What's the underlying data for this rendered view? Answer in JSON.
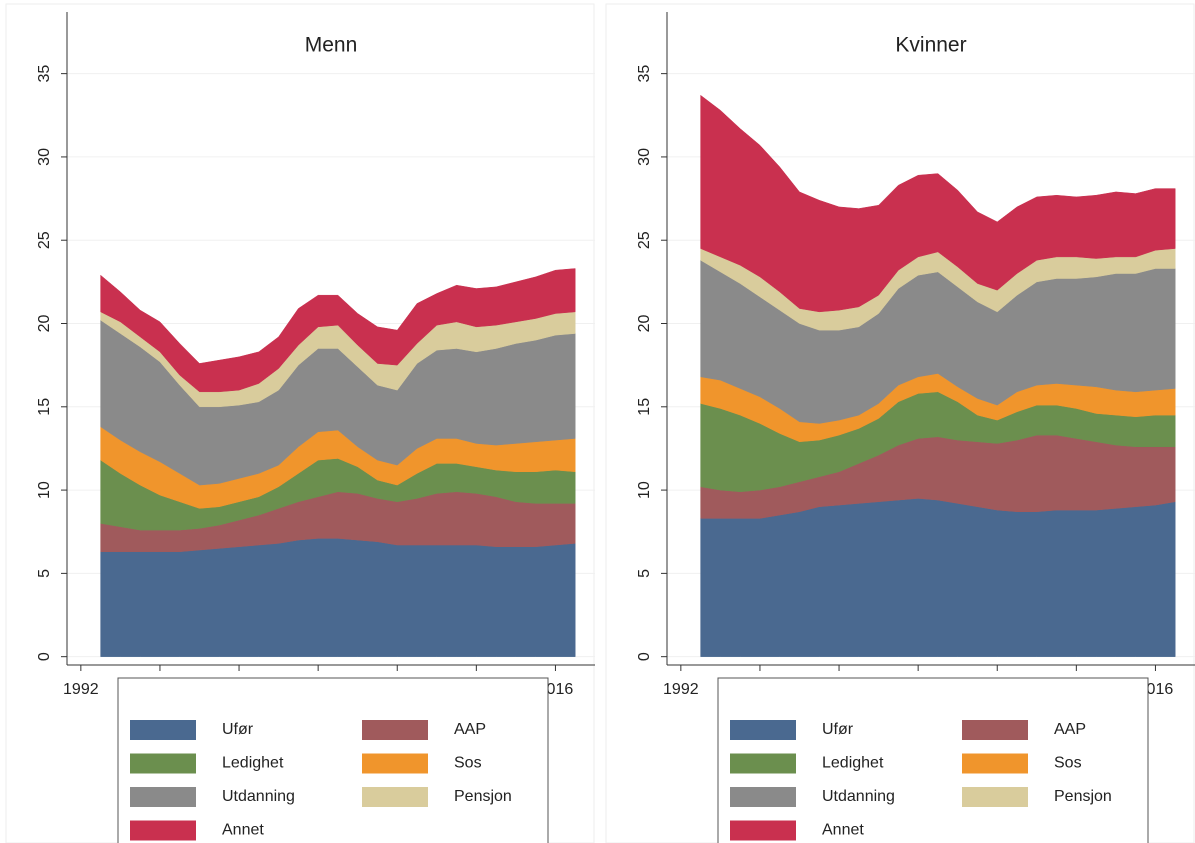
{
  "chart_data": [
    {
      "type": "area",
      "title": "Menn",
      "x": [
        1993,
        1994,
        1995,
        1996,
        1997,
        1998,
        1999,
        2000,
        2001,
        2002,
        2003,
        2004,
        2005,
        2006,
        2007,
        2008,
        2009,
        2010,
        2011,
        2012,
        2013,
        2014,
        2015,
        2016,
        2017
      ],
      "xlim": [
        1991.3,
        2018
      ],
      "xticks": [
        1992,
        1996,
        2000,
        2004,
        2008,
        2012,
        2016
      ],
      "ylim": [
        -0.5,
        38.7
      ],
      "yticks": [
        0,
        5,
        10,
        15,
        20,
        25,
        30,
        35
      ],
      "grid": true,
      "legend": "bottom",
      "series": [
        {
          "name": "Ufør",
          "color": "#4a6990",
          "values": [
            6.3,
            6.3,
            6.3,
            6.3,
            6.3,
            6.4,
            6.5,
            6.6,
            6.7,
            6.8,
            7.0,
            7.1,
            7.1,
            7.0,
            6.9,
            6.7,
            6.7,
            6.7,
            6.7,
            6.7,
            6.6,
            6.6,
            6.6,
            6.7,
            6.8
          ]
        },
        {
          "name": "AAP",
          "color": "#a05a5c",
          "values": [
            1.7,
            1.5,
            1.3,
            1.3,
            1.3,
            1.3,
            1.4,
            1.6,
            1.8,
            2.1,
            2.3,
            2.5,
            2.8,
            2.8,
            2.6,
            2.6,
            2.8,
            3.1,
            3.2,
            3.1,
            3.0,
            2.7,
            2.6,
            2.5,
            2.4
          ]
        },
        {
          "name": "Ledighet",
          "color": "#6b8f4e",
          "values": [
            3.8,
            3.2,
            2.7,
            2.1,
            1.7,
            1.2,
            1.1,
            1.1,
            1.1,
            1.3,
            1.7,
            2.2,
            2.0,
            1.6,
            1.1,
            1.0,
            1.5,
            1.8,
            1.7,
            1.6,
            1.6,
            1.8,
            1.9,
            2.0,
            1.9
          ]
        },
        {
          "name": "Sos",
          "color": "#f0952c",
          "values": [
            2.0,
            2.0,
            2.0,
            2.0,
            1.7,
            1.4,
            1.4,
            1.4,
            1.4,
            1.3,
            1.6,
            1.7,
            1.7,
            1.2,
            1.2,
            1.2,
            1.5,
            1.5,
            1.5,
            1.4,
            1.5,
            1.7,
            1.8,
            1.8,
            2.0
          ]
        },
        {
          "name": "Utdanning",
          "color": "#8a8a8a",
          "values": [
            6.4,
            6.4,
            6.3,
            6.0,
            5.3,
            4.7,
            4.6,
            4.4,
            4.3,
            4.5,
            4.9,
            5.0,
            4.9,
            4.8,
            4.5,
            4.5,
            5.1,
            5.3,
            5.4,
            5.5,
            5.8,
            6.0,
            6.1,
            6.3,
            6.3
          ]
        },
        {
          "name": "Pensjon",
          "color": "#d9cc9c",
          "values": [
            0.5,
            0.7,
            0.6,
            0.6,
            0.6,
            0.9,
            0.9,
            0.9,
            1.1,
            1.3,
            1.2,
            1.3,
            1.4,
            1.3,
            1.3,
            1.5,
            1.2,
            1.5,
            1.6,
            1.5,
            1.4,
            1.3,
            1.3,
            1.3,
            1.3
          ]
        },
        {
          "name": "Annet",
          "color": "#c9304f",
          "values": [
            2.2,
            1.8,
            1.6,
            1.8,
            1.9,
            1.7,
            1.9,
            2.0,
            1.9,
            1.9,
            2.2,
            1.9,
            1.8,
            1.9,
            2.2,
            2.1,
            2.4,
            1.9,
            2.2,
            2.3,
            2.3,
            2.4,
            2.5,
            2.6,
            2.6
          ]
        }
      ]
    },
    {
      "type": "area",
      "title": "Kvinner",
      "x": [
        1993,
        1994,
        1995,
        1996,
        1997,
        1998,
        1999,
        2000,
        2001,
        2002,
        2003,
        2004,
        2005,
        2006,
        2007,
        2008,
        2009,
        2010,
        2011,
        2012,
        2013,
        2014,
        2015,
        2016,
        2017
      ],
      "xlim": [
        1991.3,
        2018
      ],
      "xticks": [
        1992,
        1996,
        2000,
        2004,
        2008,
        2012,
        2016
      ],
      "ylim": [
        -0.5,
        38.7
      ],
      "yticks": [
        0,
        5,
        10,
        15,
        20,
        25,
        30,
        35
      ],
      "grid": true,
      "legend": "bottom",
      "series": [
        {
          "name": "Ufør",
          "color": "#4a6990",
          "values": [
            8.3,
            8.3,
            8.3,
            8.3,
            8.5,
            8.7,
            9.0,
            9.1,
            9.2,
            9.3,
            9.4,
            9.5,
            9.4,
            9.2,
            9.0,
            8.8,
            8.7,
            8.7,
            8.8,
            8.8,
            8.8,
            8.9,
            9.0,
            9.1,
            9.3
          ]
        },
        {
          "name": "AAP",
          "color": "#a05a5c",
          "values": [
            1.9,
            1.7,
            1.6,
            1.7,
            1.7,
            1.8,
            1.8,
            2.0,
            2.4,
            2.8,
            3.3,
            3.6,
            3.8,
            3.8,
            3.9,
            4.0,
            4.3,
            4.6,
            4.5,
            4.3,
            4.1,
            3.8,
            3.6,
            3.5,
            3.3
          ]
        },
        {
          "name": "Ledighet",
          "color": "#6b8f4e",
          "values": [
            5.0,
            4.9,
            4.6,
            4.0,
            3.2,
            2.4,
            2.2,
            2.2,
            2.1,
            2.2,
            2.6,
            2.7,
            2.7,
            2.3,
            1.6,
            1.4,
            1.7,
            1.8,
            1.8,
            1.8,
            1.7,
            1.8,
            1.8,
            1.9,
            1.9
          ]
        },
        {
          "name": "Sos",
          "color": "#f0952c",
          "values": [
            1.6,
            1.7,
            1.6,
            1.6,
            1.5,
            1.2,
            1.0,
            0.9,
            0.8,
            0.9,
            1.0,
            1.0,
            1.1,
            0.9,
            1.0,
            0.9,
            1.2,
            1.2,
            1.3,
            1.4,
            1.6,
            1.5,
            1.5,
            1.5,
            1.6
          ]
        },
        {
          "name": "Utdanning",
          "color": "#8a8a8a",
          "values": [
            7.0,
            6.5,
            6.3,
            6.0,
            5.9,
            5.9,
            5.6,
            5.4,
            5.3,
            5.4,
            5.8,
            6.1,
            6.1,
            6.0,
            5.8,
            5.6,
            5.8,
            6.2,
            6.3,
            6.4,
            6.6,
            7.0,
            7.1,
            7.3,
            7.2
          ]
        },
        {
          "name": "Pensjon",
          "color": "#d9cc9c",
          "values": [
            0.7,
            0.9,
            1.1,
            1.2,
            1.1,
            0.9,
            1.1,
            1.2,
            1.2,
            1.1,
            1.1,
            1.1,
            1.2,
            1.2,
            1.1,
            1.3,
            1.3,
            1.3,
            1.3,
            1.3,
            1.1,
            1.0,
            1.0,
            1.1,
            1.2
          ]
        },
        {
          "name": "Annet",
          "color": "#c9304f",
          "values": [
            9.2,
            8.8,
            8.2,
            7.9,
            7.5,
            7.0,
            6.7,
            6.2,
            5.9,
            5.4,
            5.1,
            4.9,
            4.7,
            4.6,
            4.3,
            4.1,
            4.0,
            3.8,
            3.7,
            3.6,
            3.8,
            3.9,
            3.8,
            3.7,
            3.6
          ]
        }
      ]
    }
  ]
}
